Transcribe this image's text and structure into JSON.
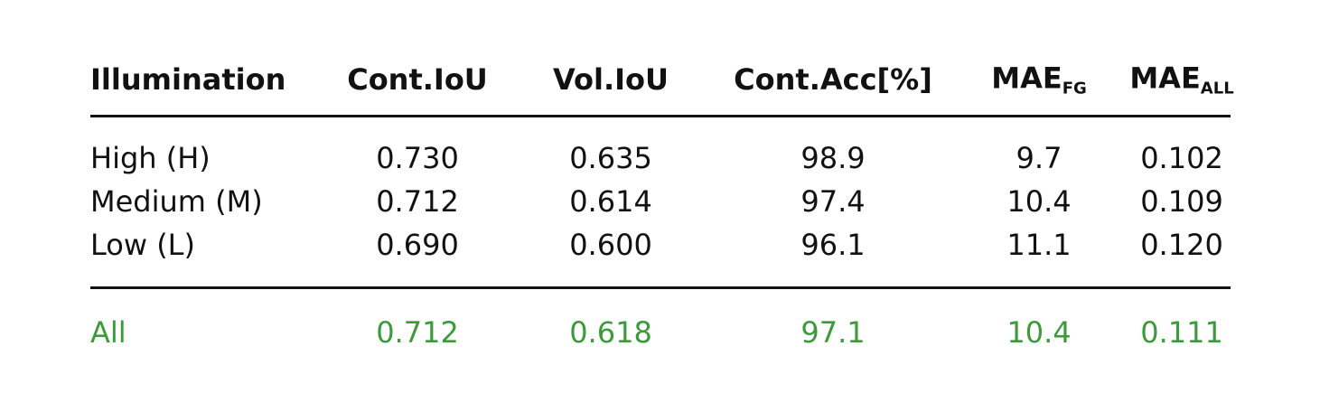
{
  "table": {
    "header": [
      "Illumination",
      "Cont.IoU",
      "Vol.IoU",
      "Cont.Acc[%]",
      {
        "text": "MAE",
        "sub": "FG"
      },
      {
        "text": "MAE",
        "sub": "ALL"
      }
    ],
    "rows": [
      [
        "High (H)",
        "0.730",
        "0.635",
        "98.9",
        "9.7",
        "0.102"
      ],
      [
        "Medium (M)",
        "0.712",
        "0.614",
        "97.4",
        "10.4",
        "0.109"
      ],
      [
        "Low (L)",
        "0.690",
        "0.600",
        "96.1",
        "11.1",
        "0.120"
      ]
    ],
    "summary": [
      "All",
      "0.712",
      "0.618",
      "97.1",
      "10.4",
      "0.111"
    ]
  }
}
